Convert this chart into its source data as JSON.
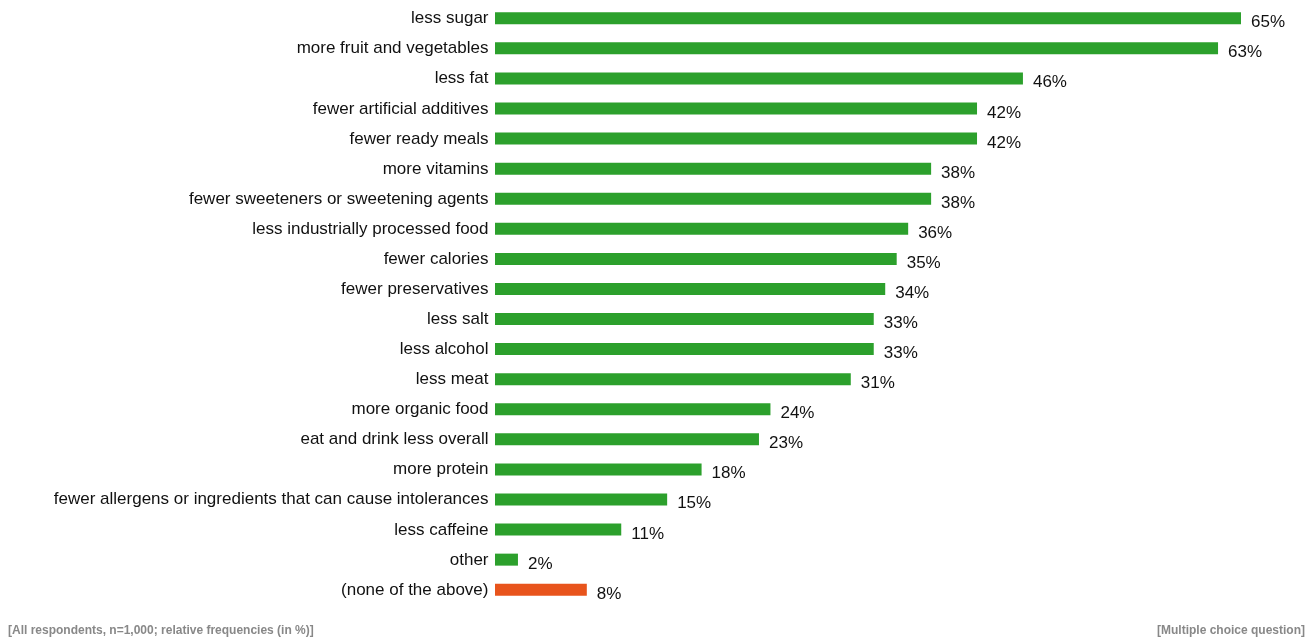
{
  "chart_data": {
    "type": "bar",
    "orientation": "horizontal",
    "categories": [
      "less sugar",
      "more fruit and vegetables",
      "less fat",
      "fewer artificial additives",
      "fewer ready meals",
      "more vitamins",
      "fewer sweeteners or sweetening agents",
      "less industrially processed food",
      "fewer calories",
      "fewer preservatives",
      "less salt",
      "less alcohol",
      "less meat",
      "more organic food",
      "eat and drink less overall",
      "more protein",
      "fewer allergens or ingredients that can cause intolerances",
      "less caffeine",
      "other",
      "(none of the above)"
    ],
    "values": [
      65,
      63,
      46,
      42,
      42,
      38,
      38,
      36,
      35,
      34,
      33,
      33,
      31,
      24,
      23,
      18,
      15,
      11,
      2,
      8
    ],
    "value_labels": [
      "65%",
      "63%",
      "46%",
      "42%",
      "42%",
      "38%",
      "38%",
      "36%",
      "35%",
      "34%",
      "33%",
      "33%",
      "31%",
      "24%",
      "23%",
      "18%",
      "15%",
      "11%",
      "2%",
      "8%"
    ],
    "colors": [
      "#2ca02c",
      "#2ca02c",
      "#2ca02c",
      "#2ca02c",
      "#2ca02c",
      "#2ca02c",
      "#2ca02c",
      "#2ca02c",
      "#2ca02c",
      "#2ca02c",
      "#2ca02c",
      "#2ca02c",
      "#2ca02c",
      "#2ca02c",
      "#2ca02c",
      "#2ca02c",
      "#2ca02c",
      "#2ca02c",
      "#2ca02c",
      "#e8541c"
    ],
    "annotations": [
      "[All respondents, n=1,000; relative frequencies (in %)]",
      "[Multiple choice question]"
    ],
    "grid": false
  }
}
